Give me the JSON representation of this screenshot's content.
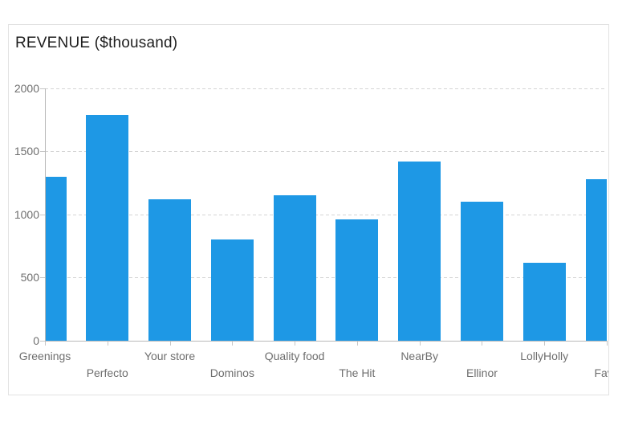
{
  "chart_data": {
    "type": "bar",
    "title": "REVENUE ($thousand)",
    "categories": [
      "Greenings",
      "Perfecto",
      "Your store",
      "Dominos",
      "Quality food",
      "The Hit",
      "NearBy",
      "Ellinor",
      "LollyHolly",
      "Favo"
    ],
    "values": [
      1300,
      1790,
      1120,
      800,
      1150,
      960,
      1420,
      1100,
      620,
      1280
    ],
    "ylim": [
      0,
      2000
    ],
    "y_ticks": [
      0,
      500,
      1000,
      1500,
      2000
    ],
    "xlabel": "",
    "ylabel": "",
    "grid": "horizontal-dashed",
    "legend": "none",
    "colors": {
      "bar": "#1e98e5",
      "axis_line": "#b9b9b9",
      "tick": "#c6c6c6",
      "gridline": "#d4d4d4",
      "axis_label": "#6e6e6e",
      "title": "#1e1e1e",
      "card_border": "#e2e2e2",
      "background": "#ffffff"
    },
    "layout_hints": {
      "label_stagger": "two-row",
      "first_bar_clipped_left": true,
      "last_bar_clipped_right": true,
      "last_label_truncated_at_card_edge": true
    }
  }
}
